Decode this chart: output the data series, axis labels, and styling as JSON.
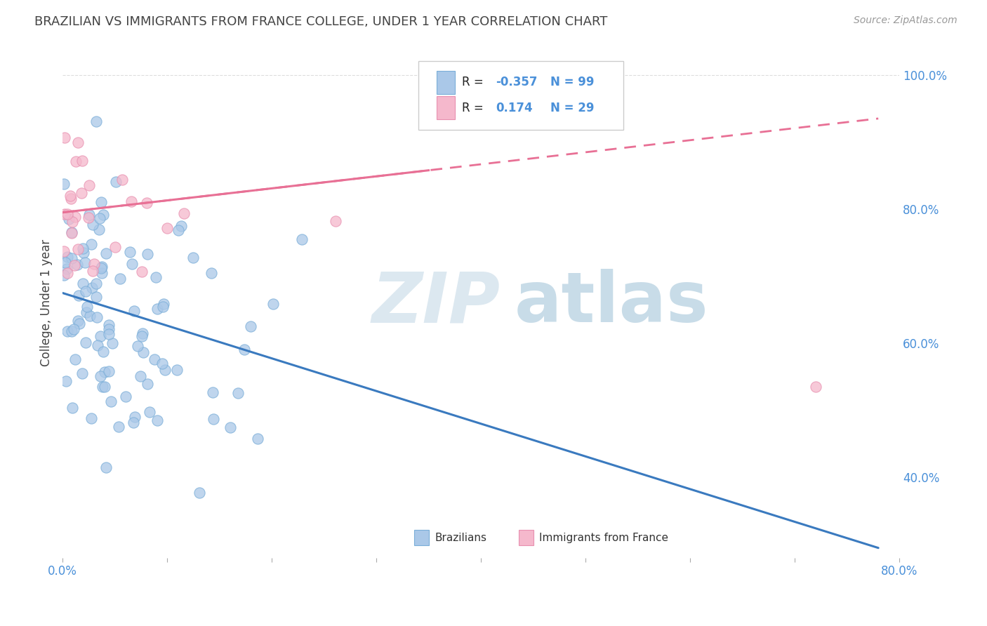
{
  "title": "BRAZILIAN VS IMMIGRANTS FROM FRANCE COLLEGE, UNDER 1 YEAR CORRELATION CHART",
  "source": "Source: ZipAtlas.com",
  "ylabel": "College, Under 1 year",
  "xlim": [
    0.0,
    0.8
  ],
  "ylim": [
    0.28,
    1.04
  ],
  "background_color": "#ffffff",
  "grid_color": "#dddddd",
  "brazilians_color": "#aac8e8",
  "brazilians_edge_color": "#7aaed8",
  "immigrants_color": "#f5b8cc",
  "immigrants_edge_color": "#e890b0",
  "brazilian_line_color": "#3a7abf",
  "immigrant_line_color": "#e87095",
  "R_brazilian": -0.357,
  "N_brazilian": 99,
  "R_immigrant": 0.174,
  "N_immigrant": 29,
  "legend_R_color": "#4a90d9",
  "legend_label_color": "#222222",
  "watermark_zip_color": "#dce8f0",
  "watermark_atlas_color": "#c8dce8",
  "braz_trend_x0": 0.0,
  "braz_trend_y0": 0.675,
  "braz_trend_x1": 0.78,
  "braz_trend_y1": 0.295,
  "imm_trend_x0": 0.0,
  "imm_trend_y0": 0.795,
  "imm_trend_x1": 0.78,
  "imm_trend_y1": 0.935,
  "dashed_line_y": 1.0
}
